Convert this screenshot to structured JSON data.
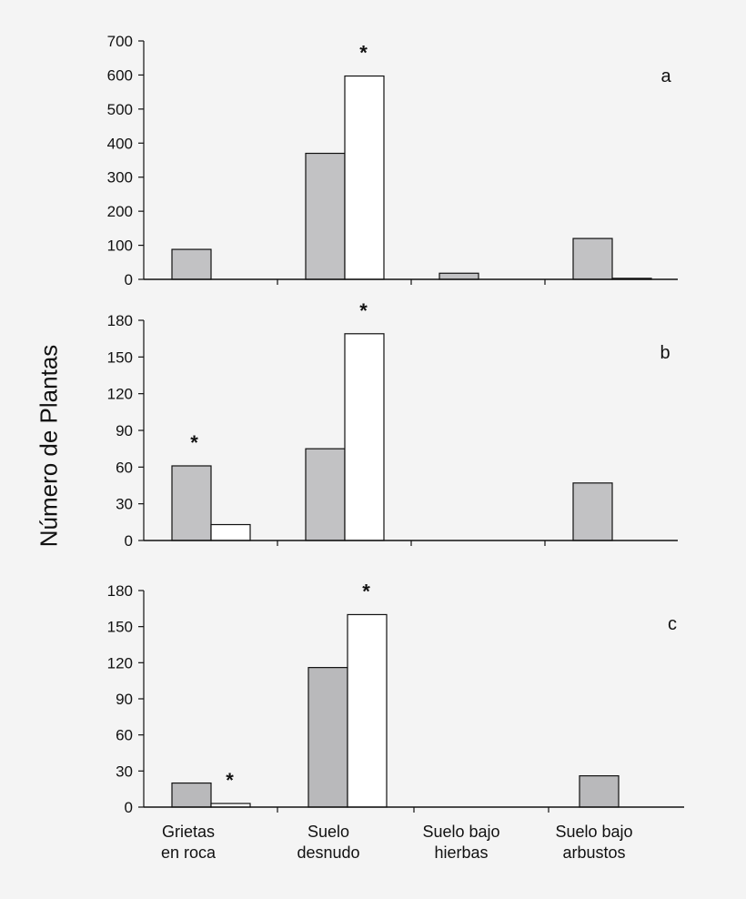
{
  "ylabel": "Número de Plantas",
  "categories": [
    [
      "Grietas",
      "en roca"
    ],
    [
      "Suelo",
      "desnudo"
    ],
    [
      "Suelo bajo",
      "hierbas"
    ],
    [
      "Suelo bajo",
      "arbustos"
    ]
  ],
  "colors": {
    "gray_bar": "#c2c2c4",
    "gray_bar_c": "#b9b9bb",
    "white_bar": "#ffffff",
    "stroke": "#111111",
    "background": "#f4f4f4"
  },
  "chart_data": [
    {
      "type": "bar",
      "panel": "a",
      "ylim": [
        0,
        700
      ],
      "yticks": [
        0,
        100,
        200,
        300,
        400,
        500,
        600,
        700
      ],
      "series": [
        {
          "values": [
            88,
            370,
            18,
            120
          ]
        },
        {
          "values": [
            0,
            597,
            0,
            3
          ]
        }
      ],
      "annotations": [
        {
          "category": 1,
          "series": 1,
          "text": "*"
        }
      ]
    },
    {
      "type": "bar",
      "panel": "b",
      "ylim": [
        0,
        180
      ],
      "yticks": [
        0,
        30,
        60,
        90,
        120,
        150,
        180
      ],
      "series": [
        {
          "values": [
            61,
            75,
            0,
            47
          ]
        },
        {
          "values": [
            13,
            169,
            0,
            0
          ]
        }
      ],
      "annotations": [
        {
          "category": 0,
          "series": 0,
          "text": "*"
        },
        {
          "category": 1,
          "series": 1,
          "text": "*"
        }
      ]
    },
    {
      "type": "bar",
      "panel": "c",
      "ylim": [
        0,
        180
      ],
      "yticks": [
        0,
        30,
        60,
        90,
        120,
        150,
        180
      ],
      "series": [
        {
          "values": [
            20,
            116,
            0,
            26
          ]
        },
        {
          "values": [
            3,
            160,
            0,
            0
          ]
        }
      ],
      "annotations": [
        {
          "category": 0,
          "series": 1,
          "text": "*"
        },
        {
          "category": 1,
          "series": 1,
          "text": "*"
        }
      ]
    }
  ]
}
